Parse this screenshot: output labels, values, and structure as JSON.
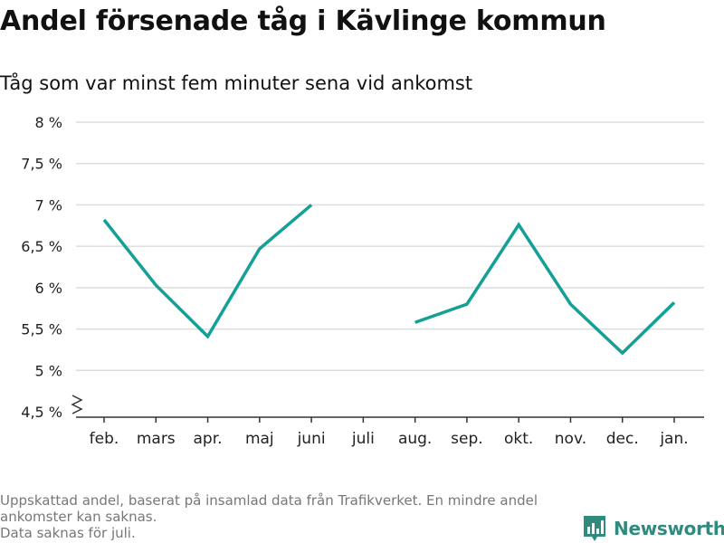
{
  "header": {
    "title": "Andel försenade tåg i Kävlinge kommun",
    "subtitle": "Tåg som var minst fem minuter sena vid ankomst"
  },
  "chart_data": {
    "type": "line",
    "title": "Andel försenade tåg i Kävlinge kommun",
    "subtitle": "Tåg som var minst fem minuter sena vid ankomst",
    "categories": [
      "feb.",
      "mars",
      "apr.",
      "maj",
      "juni",
      "juli",
      "aug.",
      "sep.",
      "okt.",
      "nov.",
      "dec.",
      "jan."
    ],
    "series": [
      {
        "values": [
          6.82,
          6.03,
          5.41,
          6.47,
          7.0,
          null,
          5.58,
          5.8,
          6.76,
          5.8,
          5.21,
          5.82
        ],
        "color": "#14a096"
      }
    ],
    "y_ticks": [
      4.5,
      5,
      5.5,
      6,
      6.5,
      7,
      7.5,
      8
    ],
    "y_tick_labels": [
      "4,5 %",
      "5 %",
      "5,5 %",
      "6 %",
      "6,5 %",
      "7 %",
      "7,5 %",
      "8 %"
    ],
    "ylim": [
      4.5,
      8
    ],
    "axis_break": true,
    "grid": true,
    "gridline_color": "#dddddd"
  },
  "footer": {
    "note_lines": [
      "Uppskattad andel, baserat på insamlad data från Trafikverket. En mindre andel",
      "ankomster kan saknas.",
      "Data saknas för juli."
    ],
    "brand_name": "Newsworthy",
    "brand_color": "#2e8b7d",
    "brand_icon": "bar-chart-logo-icon"
  }
}
